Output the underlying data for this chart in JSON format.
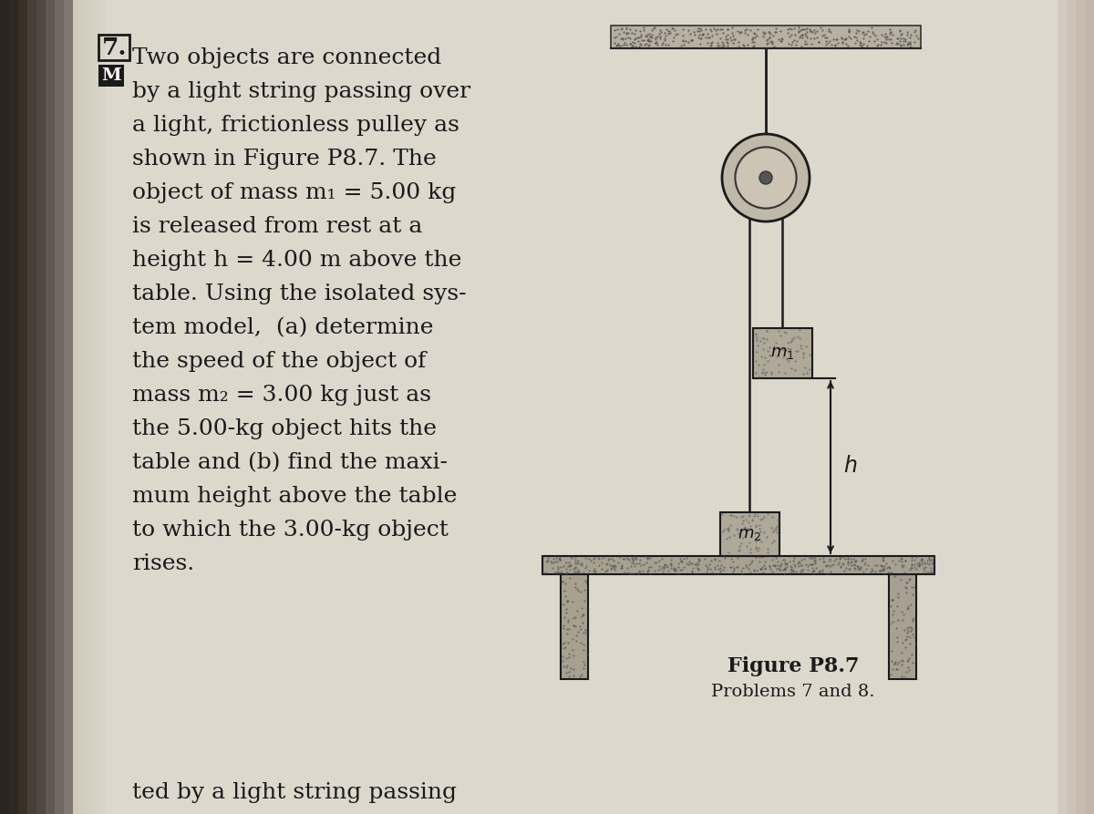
{
  "bg_color": "#c8c0b0",
  "paper_color": "#ddd8cc",
  "text_color": "#1a1a1a",
  "text_lines": [
    "Two objects are connected",
    "by a light string passing over",
    "a light, frictionless pulley as",
    "shown in Figure P8.7. The",
    "object of mass m₁ = 5.00 kg",
    "is released from rest at a",
    "height h = 4.00 m above the",
    "table. Using the isolated sys-",
    "tem model,  (a) determine",
    "the speed of the object of",
    "mass m₂ = 3.00 kg just as",
    "the 5.00-kg object hits the",
    "table and (b) find the maxi-",
    "mum height above the table",
    "to which the 3.00-kg object",
    "rises."
  ],
  "bottom_text": "ted by a light string passing",
  "figure_caption_line1": "Figure P8.7",
  "figure_caption_line2": "Problems 7 and 8.",
  "fig_width": 12.0,
  "fig_height": 8.93
}
